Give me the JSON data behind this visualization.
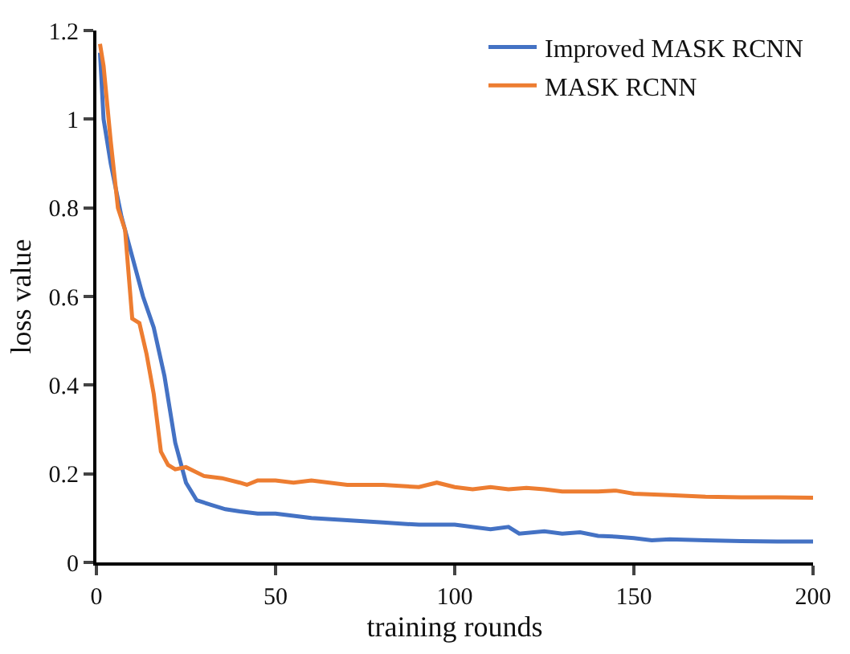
{
  "chart_data": {
    "type": "line",
    "xlabel": "training rounds",
    "ylabel": "loss value",
    "xlim": [
      0,
      200
    ],
    "xticks": [
      0,
      50,
      100,
      150,
      200
    ],
    "ylim": [
      0,
      1.2
    ],
    "yticks": [
      0,
      0.2,
      0.4,
      0.6,
      0.8,
      1.0,
      1.2
    ],
    "grid": false,
    "legend": "top right",
    "marker": "none",
    "line_style": "solid",
    "series": [
      {
        "name": "Improved MASK RCNN",
        "color": "#4472c4",
        "x": [
          1,
          2,
          4,
          7,
          10,
          13,
          16,
          19,
          22,
          25,
          28,
          32,
          36,
          40,
          45,
          50,
          60,
          70,
          80,
          90,
          100,
          110,
          115,
          118,
          125,
          130,
          135,
          140,
          145,
          150,
          155,
          160,
          170,
          180,
          190,
          200
        ],
        "values": [
          1.15,
          1.0,
          0.9,
          0.78,
          0.69,
          0.6,
          0.53,
          0.42,
          0.27,
          0.18,
          0.14,
          0.13,
          0.12,
          0.115,
          0.11,
          0.11,
          0.1,
          0.095,
          0.09,
          0.085,
          0.085,
          0.075,
          0.08,
          0.065,
          0.07,
          0.065,
          0.068,
          0.06,
          0.058,
          0.055,
          0.05,
          0.052,
          0.05,
          0.048,
          0.047,
          0.047
        ]
      },
      {
        "name": "MASK RCNN",
        "color": "#ed7d31",
        "x": [
          1,
          2,
          4,
          6,
          8,
          10,
          12,
          14,
          16,
          18,
          20,
          22,
          25,
          30,
          35,
          40,
          42,
          45,
          50,
          55,
          60,
          70,
          80,
          90,
          95,
          100,
          105,
          110,
          115,
          120,
          125,
          130,
          140,
          145,
          150,
          160,
          170,
          180,
          190,
          200
        ],
        "values": [
          1.17,
          1.12,
          0.95,
          0.8,
          0.75,
          0.55,
          0.54,
          0.47,
          0.38,
          0.25,
          0.22,
          0.21,
          0.215,
          0.195,
          0.19,
          0.18,
          0.175,
          0.185,
          0.185,
          0.18,
          0.185,
          0.175,
          0.175,
          0.17,
          0.18,
          0.17,
          0.165,
          0.17,
          0.165,
          0.168,
          0.165,
          0.16,
          0.16,
          0.162,
          0.155,
          0.152,
          0.148,
          0.147,
          0.147,
          0.146
        ]
      }
    ]
  }
}
